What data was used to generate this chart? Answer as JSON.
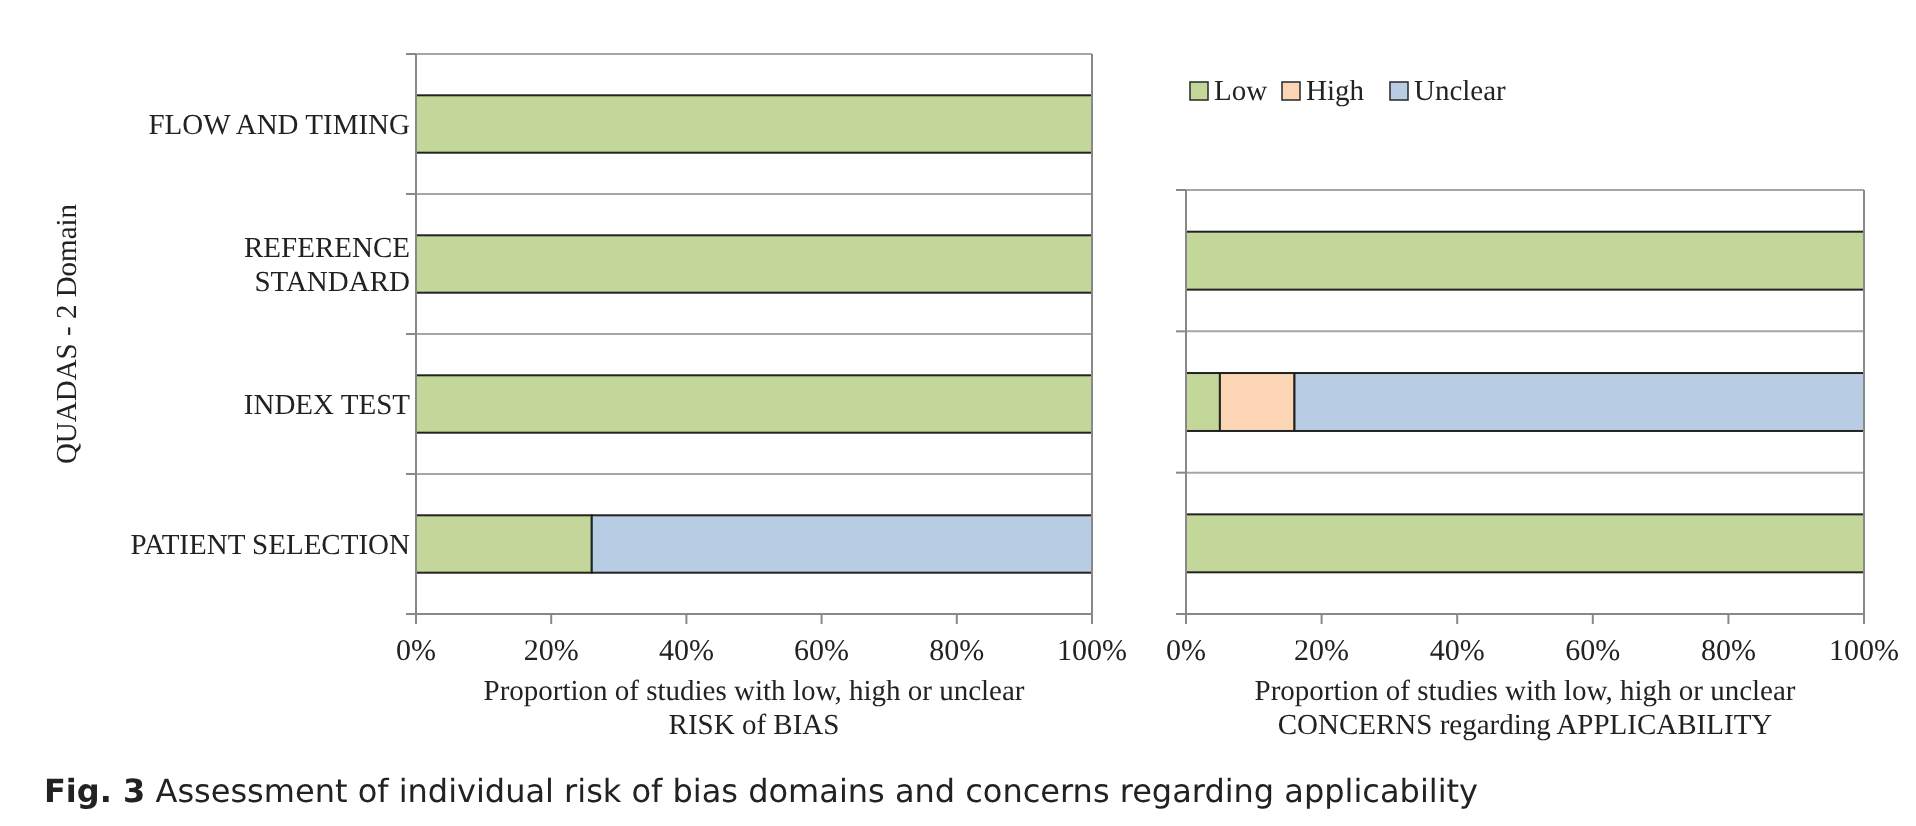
{
  "chart_data": [
    {
      "type": "bar",
      "orientation": "horizontal",
      "stacked": true,
      "categories": [
        "FLOW AND TIMING",
        "REFERENCE\nSTANDARD",
        "INDEX TEST",
        "PATIENT SELECTION"
      ],
      "series": [
        {
          "color": "#c4d79b",
          "values": [
            100,
            100,
            100,
            26
          ]
        },
        {
          "color": "#b8cce4",
          "values": [
            0,
            0,
            0,
            74
          ]
        }
      ],
      "xlim": [
        0,
        100
      ],
      "xticks": [
        {
          "value": 0,
          "label": "0%"
        },
        {
          "value": 20,
          "label": "20%"
        },
        {
          "value": 40,
          "label": "40%"
        },
        {
          "value": 60,
          "label": "60%"
        },
        {
          "value": 80,
          "label": "80%"
        },
        {
          "value": 100,
          "label": "100%"
        }
      ],
      "xlabel": "Proportion of studies with low, high or unclear\nRISK of BIAS",
      "ylabel": "QUADAS - 2 Domain",
      "grid": "y",
      "legend": false,
      "annotations": [
        "Fig. 3 Assessment of individual risk of bias domains and concerns regarding applicability"
      ]
    },
    {
      "type": "bar",
      "orientation": "horizontal",
      "stacked": true,
      "categories": [
        null,
        null,
        null
      ],
      "series": [
        {
          "name": "Low",
          "color": "#c4d79b",
          "values": [
            100,
            5,
            100
          ]
        },
        {
          "name": "High",
          "color": "#fcd5b5",
          "values": [
            0,
            11,
            0
          ]
        },
        {
          "name": "Unclear",
          "color": "#b8cce4",
          "values": [
            0,
            84,
            0
          ]
        }
      ],
      "xlim": [
        0,
        100
      ],
      "xticks": [
        {
          "value": 0,
          "label": "0%"
        },
        {
          "value": 20,
          "label": "20%"
        },
        {
          "value": 40,
          "label": "40%"
        },
        {
          "value": 60,
          "label": "60%"
        },
        {
          "value": 80,
          "label": "80%"
        },
        {
          "value": 100,
          "label": "100%"
        }
      ],
      "xlabel": "Proportion of studies with low, high or unclear\nCONCERNS regarding APPLICABILITY",
      "grid": "y",
      "legend": "top left",
      "tick_labels": "x"
    }
  ]
}
